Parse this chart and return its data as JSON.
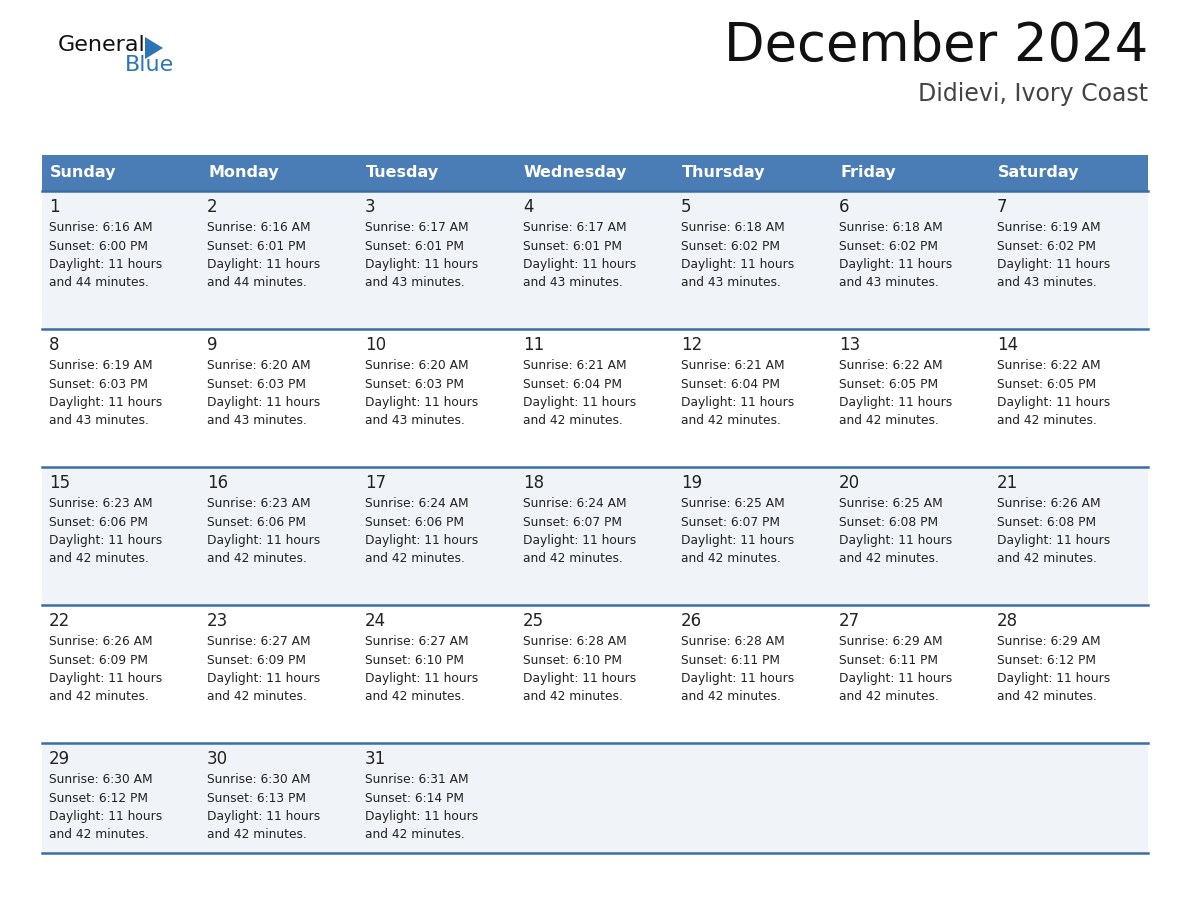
{
  "title": "December 2024",
  "subtitle": "Didievi, Ivory Coast",
  "days_of_week": [
    "Sunday",
    "Monday",
    "Tuesday",
    "Wednesday",
    "Thursday",
    "Friday",
    "Saturday"
  ],
  "header_bg": "#4A7DB5",
  "header_text": "#FFFFFF",
  "cell_bg_odd": "#F0F4F8",
  "cell_bg_even": "#FFFFFF",
  "border_color": "#3A6EA5",
  "text_color": "#222222",
  "calendar_data": [
    [
      {
        "day": 1,
        "sunrise": "6:16 AM",
        "sunset": "6:00 PM",
        "daylight": "11 hours and 44 minutes."
      },
      {
        "day": 2,
        "sunrise": "6:16 AM",
        "sunset": "6:01 PM",
        "daylight": "11 hours and 44 minutes."
      },
      {
        "day": 3,
        "sunrise": "6:17 AM",
        "sunset": "6:01 PM",
        "daylight": "11 hours and 43 minutes."
      },
      {
        "day": 4,
        "sunrise": "6:17 AM",
        "sunset": "6:01 PM",
        "daylight": "11 hours and 43 minutes."
      },
      {
        "day": 5,
        "sunrise": "6:18 AM",
        "sunset": "6:02 PM",
        "daylight": "11 hours and 43 minutes."
      },
      {
        "day": 6,
        "sunrise": "6:18 AM",
        "sunset": "6:02 PM",
        "daylight": "11 hours and 43 minutes."
      },
      {
        "day": 7,
        "sunrise": "6:19 AM",
        "sunset": "6:02 PM",
        "daylight": "11 hours and 43 minutes."
      }
    ],
    [
      {
        "day": 8,
        "sunrise": "6:19 AM",
        "sunset": "6:03 PM",
        "daylight": "11 hours and 43 minutes."
      },
      {
        "day": 9,
        "sunrise": "6:20 AM",
        "sunset": "6:03 PM",
        "daylight": "11 hours and 43 minutes."
      },
      {
        "day": 10,
        "sunrise": "6:20 AM",
        "sunset": "6:03 PM",
        "daylight": "11 hours and 43 minutes."
      },
      {
        "day": 11,
        "sunrise": "6:21 AM",
        "sunset": "6:04 PM",
        "daylight": "11 hours and 42 minutes."
      },
      {
        "day": 12,
        "sunrise": "6:21 AM",
        "sunset": "6:04 PM",
        "daylight": "11 hours and 42 minutes."
      },
      {
        "day": 13,
        "sunrise": "6:22 AM",
        "sunset": "6:05 PM",
        "daylight": "11 hours and 42 minutes."
      },
      {
        "day": 14,
        "sunrise": "6:22 AM",
        "sunset": "6:05 PM",
        "daylight": "11 hours and 42 minutes."
      }
    ],
    [
      {
        "day": 15,
        "sunrise": "6:23 AM",
        "sunset": "6:06 PM",
        "daylight": "11 hours and 42 minutes."
      },
      {
        "day": 16,
        "sunrise": "6:23 AM",
        "sunset": "6:06 PM",
        "daylight": "11 hours and 42 minutes."
      },
      {
        "day": 17,
        "sunrise": "6:24 AM",
        "sunset": "6:06 PM",
        "daylight": "11 hours and 42 minutes."
      },
      {
        "day": 18,
        "sunrise": "6:24 AM",
        "sunset": "6:07 PM",
        "daylight": "11 hours and 42 minutes."
      },
      {
        "day": 19,
        "sunrise": "6:25 AM",
        "sunset": "6:07 PM",
        "daylight": "11 hours and 42 minutes."
      },
      {
        "day": 20,
        "sunrise": "6:25 AM",
        "sunset": "6:08 PM",
        "daylight": "11 hours and 42 minutes."
      },
      {
        "day": 21,
        "sunrise": "6:26 AM",
        "sunset": "6:08 PM",
        "daylight": "11 hours and 42 minutes."
      }
    ],
    [
      {
        "day": 22,
        "sunrise": "6:26 AM",
        "sunset": "6:09 PM",
        "daylight": "11 hours and 42 minutes."
      },
      {
        "day": 23,
        "sunrise": "6:27 AM",
        "sunset": "6:09 PM",
        "daylight": "11 hours and 42 minutes."
      },
      {
        "day": 24,
        "sunrise": "6:27 AM",
        "sunset": "6:10 PM",
        "daylight": "11 hours and 42 minutes."
      },
      {
        "day": 25,
        "sunrise": "6:28 AM",
        "sunset": "6:10 PM",
        "daylight": "11 hours and 42 minutes."
      },
      {
        "day": 26,
        "sunrise": "6:28 AM",
        "sunset": "6:11 PM",
        "daylight": "11 hours and 42 minutes."
      },
      {
        "day": 27,
        "sunrise": "6:29 AM",
        "sunset": "6:11 PM",
        "daylight": "11 hours and 42 minutes."
      },
      {
        "day": 28,
        "sunrise": "6:29 AM",
        "sunset": "6:12 PM",
        "daylight": "11 hours and 42 minutes."
      }
    ],
    [
      {
        "day": 29,
        "sunrise": "6:30 AM",
        "sunset": "6:12 PM",
        "daylight": "11 hours and 42 minutes."
      },
      {
        "day": 30,
        "sunrise": "6:30 AM",
        "sunset": "6:13 PM",
        "daylight": "11 hours and 42 minutes."
      },
      {
        "day": 31,
        "sunrise": "6:31 AM",
        "sunset": "6:14 PM",
        "daylight": "11 hours and 42 minutes."
      },
      null,
      null,
      null,
      null
    ]
  ],
  "title_fontsize": 38,
  "subtitle_fontsize": 17,
  "day_number_fontsize": 12,
  "cell_text_fontsize": 8.8,
  "header_fontsize": 11.5
}
